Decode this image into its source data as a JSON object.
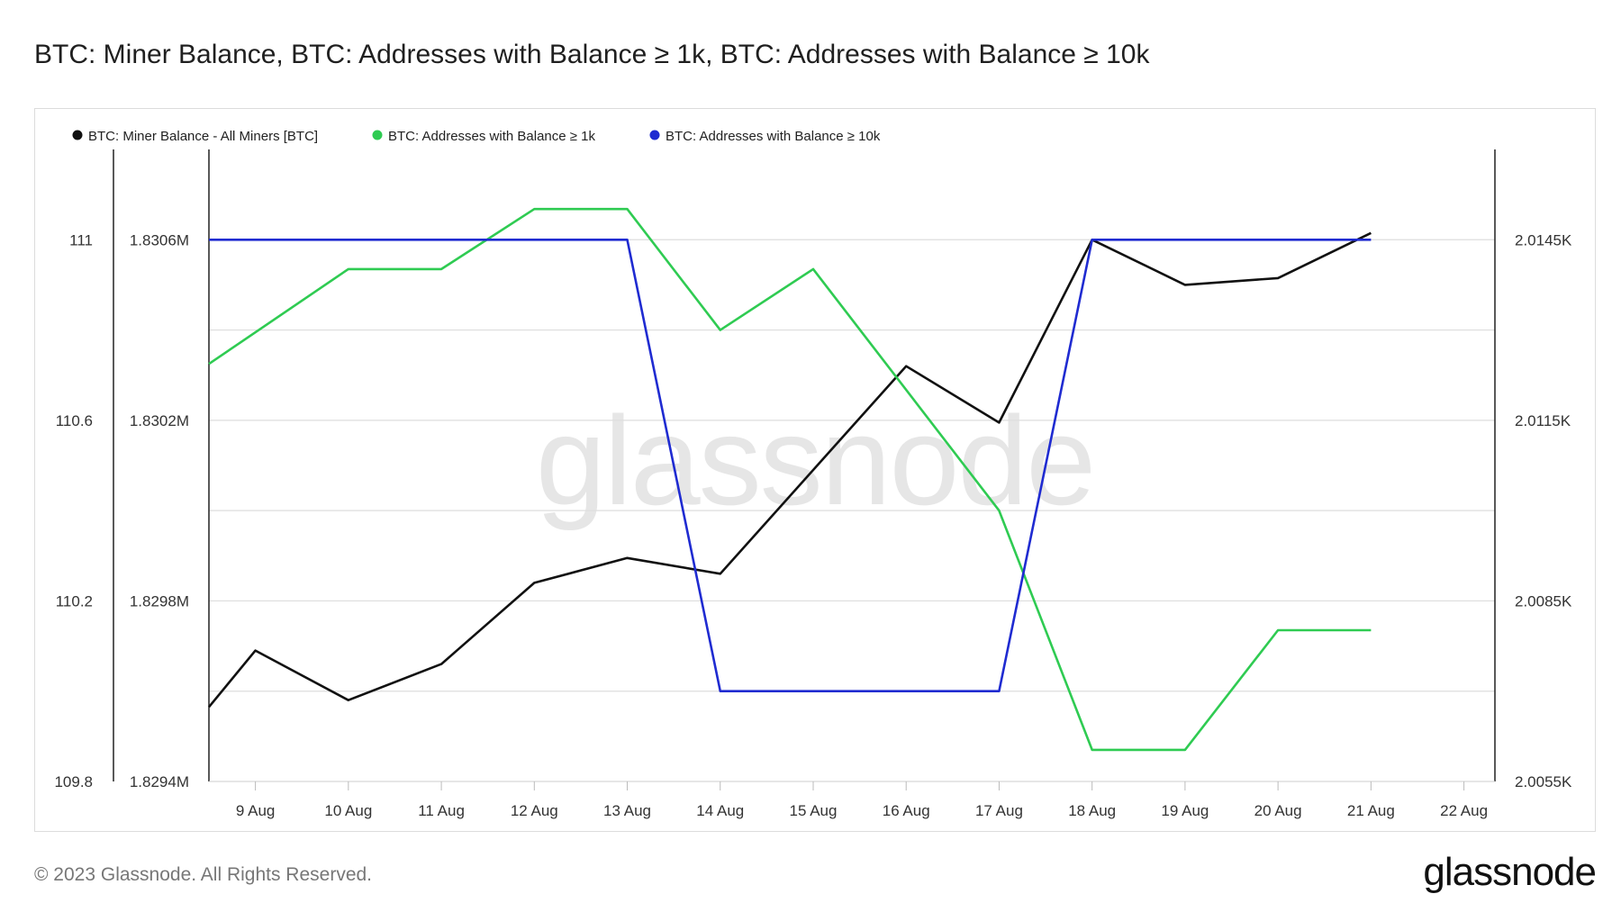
{
  "title": "BTC: Miner Balance, BTC: Addresses with Balance ≥ 1k, BTC: Addresses with Balance ≥ 10k",
  "footer": {
    "copyright": "© 2023 Glassnode. All Rights Reserved.",
    "logo": "glassnode"
  },
  "watermark": "glassnode",
  "colors": {
    "miner": "#111111",
    "k1": "#2fcb52",
    "k10": "#1f2bd1",
    "grid": "#dddddd",
    "axis": "#222222"
  },
  "chart_data": {
    "type": "line",
    "title": "BTC: Miner Balance, BTC: Addresses with Balance ≥ 1k, BTC: Addresses with Balance ≥ 10k",
    "x_ticks": [
      "9 Aug",
      "10 Aug",
      "11 Aug",
      "12 Aug",
      "13 Aug",
      "14 Aug",
      "15 Aug",
      "16 Aug",
      "17 Aug",
      "18 Aug",
      "19 Aug",
      "20 Aug",
      "21 Aug",
      "22 Aug"
    ],
    "x_range": [
      "2023-08-08T12:00",
      "2023-08-22T08:00"
    ],
    "axes": {
      "left_outer": {
        "ticks": [
          "111",
          "110.6",
          "110.2",
          "109.8"
        ],
        "range": [
          109.8,
          111.2
        ]
      },
      "left_inner": {
        "ticks": [
          "1.8306M",
          "1.8302M",
          "1.8298M",
          "1.8294M"
        ],
        "range": [
          1829400,
          1830800
        ]
      },
      "right": {
        "ticks": [
          "2.0145K",
          "2.0115K",
          "2.0085K",
          "2.0055K"
        ],
        "range": [
          2005.5,
          2016.0
        ]
      }
    },
    "legend_position": "top-left",
    "grid": true,
    "series": [
      {
        "name": "BTC: Miner Balance - All Miners [BTC]",
        "axis": "left_inner",
        "color": "#111111",
        "points": [
          [
            "2023-08-08T12:00",
            1829565
          ],
          [
            "2023-08-09T00:00",
            1829690
          ],
          [
            "2023-08-10T00:00",
            1829580
          ],
          [
            "2023-08-11T00:00",
            1829660
          ],
          [
            "2023-08-12T00:00",
            1829840
          ],
          [
            "2023-08-13T00:00",
            1829895
          ],
          [
            "2023-08-14T00:00",
            1829860
          ],
          [
            "2023-08-16T00:00",
            1830320
          ],
          [
            "2023-08-17T00:00",
            1830195
          ],
          [
            "2023-08-18T00:00",
            1830600
          ],
          [
            "2023-08-19T00:00",
            1830500
          ],
          [
            "2023-08-20T00:00",
            1830515
          ],
          [
            "2023-08-21T00:00",
            1830615
          ]
        ]
      },
      {
        "name": "BTC: Addresses with Balance ≥ 1k",
        "axis": "left_inner",
        "color": "#2fcb52",
        "points": [
          [
            "2023-08-08T12:00",
            1830325
          ],
          [
            "2023-08-10T00:00",
            1830535
          ],
          [
            "2023-08-11T00:00",
            1830535
          ],
          [
            "2023-08-12T00:00",
            1830668
          ],
          [
            "2023-08-13T00:00",
            1830668
          ],
          [
            "2023-08-14T00:00",
            1830400
          ],
          [
            "2023-08-15T00:00",
            1830535
          ],
          [
            "2023-08-17T00:00",
            1830000
          ],
          [
            "2023-08-18T00:00",
            1829470
          ],
          [
            "2023-08-19T00:00",
            1829470
          ],
          [
            "2023-08-20T00:00",
            1829735
          ],
          [
            "2023-08-21T00:00",
            1829735
          ]
        ]
      },
      {
        "name": "BTC: Addresses with Balance ≥ 10k",
        "axis": "right",
        "color": "#1f2bd1",
        "points": [
          [
            "2023-08-08T12:00",
            2014.5
          ],
          [
            "2023-08-13T00:00",
            2014.5
          ],
          [
            "2023-08-14T00:00",
            2007.0
          ],
          [
            "2023-08-17T00:00",
            2007.0
          ],
          [
            "2023-08-18T00:00",
            2014.5
          ],
          [
            "2023-08-21T00:00",
            2014.5
          ]
        ]
      }
    ]
  }
}
